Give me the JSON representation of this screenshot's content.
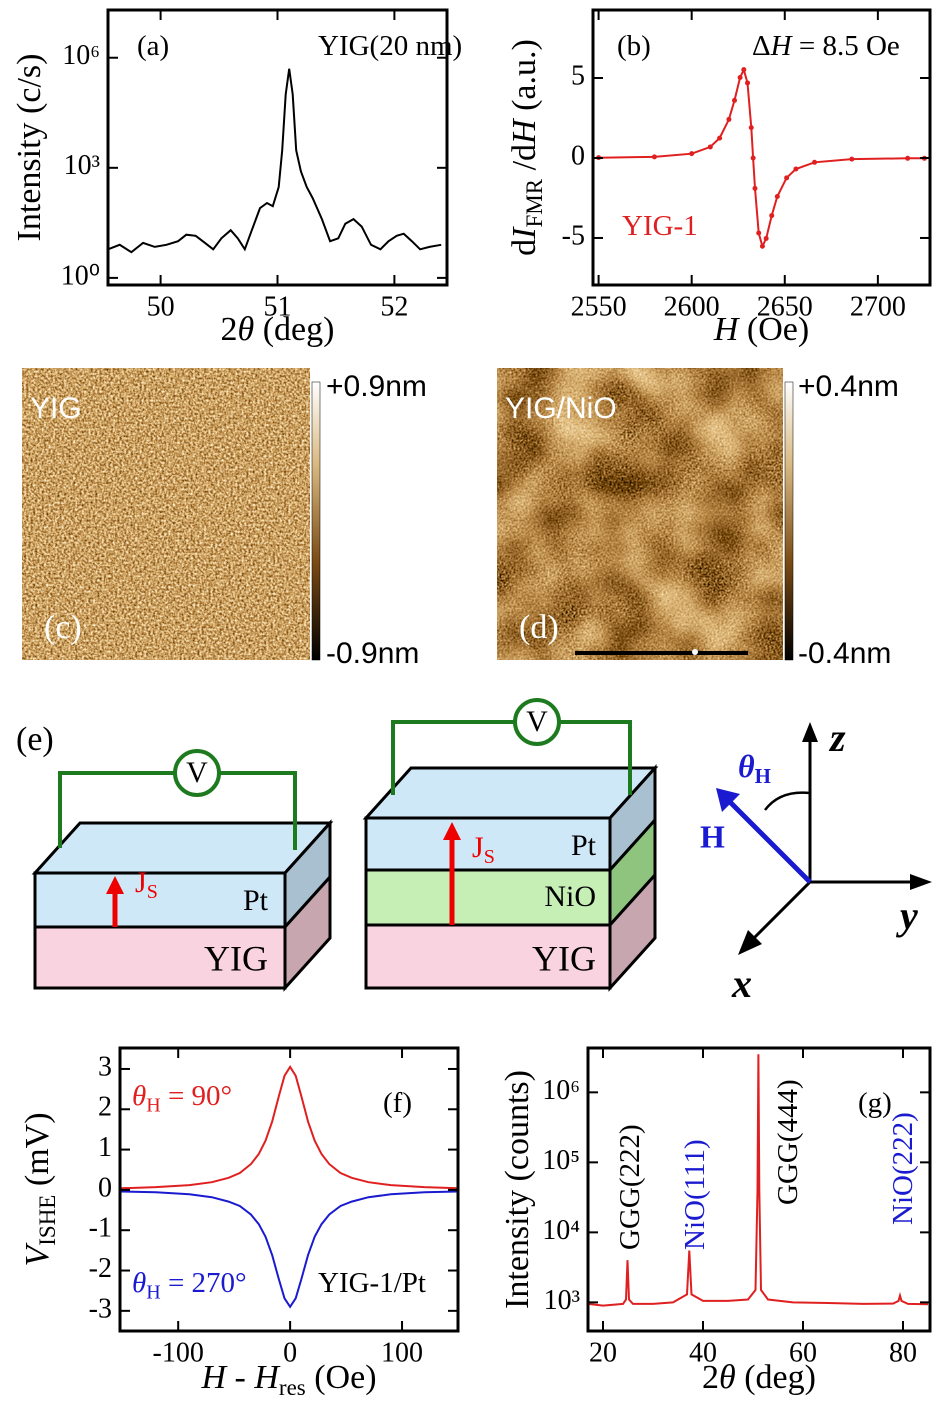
{
  "chart_data": [
    {
      "type": "line",
      "ylog": true,
      "xlabel": [
        {
          "t": "2"
        },
        {
          "t": "θ",
          "i": true
        },
        {
          "t": " (deg)"
        }
      ],
      "ylabel": [
        {
          "t": "Intensity (c/s)"
        }
      ],
      "annotations": [
        {
          "parts": [
            {
              "t": "(a)"
            }
          ]
        },
        {
          "parts": [
            {
              "t": "YIG(20 nm)"
            }
          ]
        }
      ],
      "x": [
        49.55,
        49.65,
        49.75,
        49.85,
        49.95,
        50.05,
        50.15,
        50.22,
        50.3,
        50.38,
        50.45,
        50.52,
        50.6,
        50.66,
        50.72,
        50.78,
        50.85,
        50.91,
        50.96,
        51.01,
        51.04,
        51.07,
        51.1,
        51.13,
        51.16,
        51.2,
        51.25,
        51.3,
        51.38,
        51.45,
        51.52,
        51.58,
        51.65,
        51.72,
        51.8,
        51.88,
        51.95,
        52.02,
        52.08,
        52.15,
        52.22,
        52.3,
        52.4
      ],
      "series": [
        {
          "color": "#000000",
          "values": [
            6,
            8,
            5,
            9,
            7,
            8,
            10,
            15,
            14,
            9,
            6,
            12,
            20,
            12,
            6,
            20,
            80,
            110,
            90,
            300,
            3000,
            100000,
            500000,
            100000,
            3000,
            800,
            300,
            150,
            40,
            10,
            12,
            30,
            40,
            25,
            8,
            6,
            10,
            14,
            16,
            10,
            6,
            7,
            8
          ]
        }
      ],
      "xlim": [
        49.55,
        52.45
      ],
      "ylim": [
        0.64,
        20000000
      ],
      "xticks": [
        50,
        51,
        52
      ],
      "yticks": [
        {
          "value": 1,
          "label": "10⁰"
        },
        {
          "value": 1000,
          "label": "10³"
        },
        {
          "value": 1000000,
          "label": "10⁶"
        }
      ]
    },
    {
      "type": "line",
      "markers": true,
      "xlabel": [
        {
          "t": "H",
          "i": true
        },
        {
          "t": " (Oe)"
        }
      ],
      "ylabel": [
        {
          "t": "d"
        },
        {
          "t": "I",
          "i": true
        },
        {
          "t": "FMR",
          "sub": true
        },
        {
          "t": " /d"
        },
        {
          "t": "H",
          "i": true
        },
        {
          "t": " (a.u.)"
        }
      ],
      "annotations": [
        {
          "parts": [
            {
              "t": "(b)"
            }
          ]
        },
        {
          "parts": [
            {
              "t": "Δ"
            },
            {
              "t": "H",
              "i": true
            },
            {
              "t": " = 8.5 Oe"
            }
          ]
        },
        {
          "color": "#e02020",
          "parts": [
            {
              "t": "YIG-1"
            }
          ]
        }
      ],
      "x": [
        2550,
        2580,
        2600,
        2610,
        2615,
        2620,
        2623,
        2626,
        2628,
        2630,
        2632,
        2633,
        2634,
        2636,
        2638,
        2640,
        2643,
        2646,
        2651,
        2656,
        2666,
        2686,
        2716,
        2725
      ],
      "series": [
        {
          "color": "#e02020",
          "values": [
            0.02,
            0.07,
            0.27,
            0.69,
            1.24,
            2.41,
            3.6,
            5.03,
            5.52,
            4.69,
            1.9,
            0,
            -1.9,
            -4.69,
            -5.52,
            -5.03,
            -3.6,
            -2.41,
            -1.24,
            -0.69,
            -0.27,
            -0.07,
            -0.02,
            -0.02
          ]
        }
      ],
      "xlim": [
        2547,
        2728
      ],
      "ylim": [
        -7.94,
        9.25
      ],
      "xticks": [
        2550,
        2600,
        2650,
        2700
      ],
      "yticks": [
        -5,
        0,
        5
      ]
    },
    {
      "type": "line",
      "xlabel": [
        {
          "t": "H",
          "i": true
        },
        {
          "t": " - "
        },
        {
          "t": "H",
          "i": true
        },
        {
          "t": "res",
          "sub": true
        },
        {
          "t": " (Oe)"
        }
      ],
      "ylabel": [
        {
          "t": "V",
          "i": true
        },
        {
          "t": "ISHE",
          "sub": true
        },
        {
          "t": "  (mV)"
        }
      ],
      "annotations": [
        {
          "parts": [
            {
              "t": "(f)"
            }
          ]
        },
        {
          "color": "#e02020",
          "parts": [
            {
              "t": "θ",
              "i": true
            },
            {
              "t": "H",
              "sub": true
            },
            {
              "t": " = 90°"
            }
          ]
        },
        {
          "color": "#1a1ad0",
          "parts": [
            {
              "t": "θ",
              "i": true
            },
            {
              "t": "H",
              "sub": true
            },
            {
              "t": " = 270°"
            }
          ]
        },
        {
          "parts": [
            {
              "t": "YIG-1/Pt"
            }
          ]
        }
      ],
      "x": [
        -152,
        -120,
        -90,
        -70,
        -55,
        -45,
        -35,
        -28,
        -22,
        -16,
        -10,
        -5,
        0,
        5,
        10,
        16,
        22,
        28,
        35,
        45,
        55,
        70,
        90,
        120,
        150
      ],
      "series": [
        {
          "color": "#e02020",
          "values": [
            0.04,
            0.07,
            0.12,
            0.19,
            0.3,
            0.42,
            0.64,
            0.89,
            1.22,
            1.7,
            2.33,
            2.83,
            3.05,
            2.83,
            2.33,
            1.7,
            1.22,
            0.89,
            0.64,
            0.42,
            0.3,
            0.19,
            0.12,
            0.07,
            0.04
          ]
        },
        {
          "color": "#1a1ad0",
          "values": [
            -0.04,
            -0.06,
            -0.11,
            -0.18,
            -0.29,
            -0.4,
            -0.61,
            -0.85,
            -1.16,
            -1.62,
            -2.22,
            -2.69,
            -2.9,
            -2.69,
            -2.22,
            -1.62,
            -1.16,
            -0.85,
            -0.61,
            -0.4,
            -0.29,
            -0.18,
            -0.11,
            -0.06,
            -0.04
          ]
        }
      ],
      "xlim": [
        -152,
        150
      ],
      "ylim": [
        -3.5,
        3.52
      ],
      "xticks": [
        -100,
        0,
        100
      ],
      "yticks": [
        -3,
        -2,
        -1,
        0,
        1,
        2,
        3
      ]
    },
    {
      "type": "line",
      "ylog": true,
      "xlabel": [
        {
          "t": "2"
        },
        {
          "t": "θ",
          "i": true
        },
        {
          "t": " (deg)"
        }
      ],
      "ylabel": [
        {
          "t": "Intensity (counts)"
        }
      ],
      "annotations": [
        {
          "parts": [
            {
              "t": "(g)"
            }
          ]
        },
        {
          "parts": [
            {
              "t": "GGG(222)"
            }
          ]
        },
        {
          "color": "#1a1ad0",
          "parts": [
            {
              "t": "NiO(111)"
            }
          ]
        },
        {
          "parts": [
            {
              "t": "GGG(444)"
            }
          ]
        },
        {
          "color": "#1a1ad0",
          "parts": [
            {
              "t": "NiO(222)"
            }
          ]
        }
      ],
      "x": [
        17,
        20,
        24,
        24.6,
        24.9,
        25.2,
        26,
        30,
        34,
        36.8,
        37.25,
        37.7,
        40,
        45,
        49,
        50.5,
        50.9,
        51.07,
        51.25,
        51.6,
        53,
        58,
        65,
        72,
        78,
        79.1,
        79.4,
        79.7,
        81,
        85
      ],
      "series": [
        {
          "color": "#e02020",
          "values": [
            950,
            900,
            950,
            1100,
            4000,
            1100,
            950,
            950,
            1000,
            1300,
            5500,
            1300,
            1050,
            1050,
            1100,
            1500,
            40000,
            3500000,
            40000,
            1500,
            1100,
            1000,
            980,
            950,
            960,
            1050,
            1250,
            1050,
            950,
            940
          ]
        }
      ],
      "xlim": [
        17,
        85.4
      ],
      "ylim": [
        390,
        4300000
      ],
      "xticks": [
        20,
        40,
        60,
        80
      ],
      "yticks": [
        {
          "value": 1000,
          "label": "10³"
        },
        {
          "value": 10000,
          "label": "10⁴"
        },
        {
          "value": 100000,
          "label": "10⁵"
        },
        {
          "value": 1000000,
          "label": "10⁶"
        }
      ]
    }
  ],
  "afm": [
    {
      "label": "YIG",
      "panel": "(c)",
      "scale_top": "+0.9nm",
      "scale_bottom": "-0.9nm"
    },
    {
      "label": "YIG/NiO",
      "panel": "(d)",
      "scale_top": "+0.4nm",
      "scale_bottom": "-0.4nm"
    }
  ],
  "diagram": {
    "panel": "(e)",
    "stack1": {
      "meter": "V",
      "current": [
        "J",
        "S"
      ],
      "layers": [
        "Pt",
        "YIG"
      ]
    },
    "stack2": {
      "meter": "V",
      "current": [
        "J",
        "S"
      ],
      "layers": [
        "Pt",
        "NiO",
        "YIG"
      ]
    },
    "axes": {
      "theta": [
        "θ",
        "H"
      ],
      "field": "H",
      "z": "z",
      "y": "y",
      "x": "x"
    }
  }
}
